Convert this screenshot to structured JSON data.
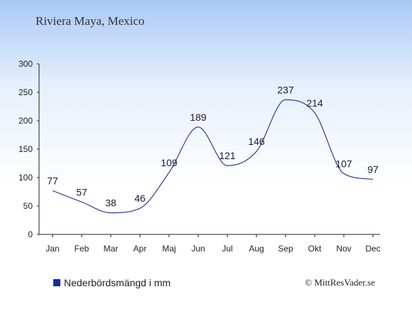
{
  "colors": {
    "line": "#1f2c8f",
    "swatch": "#1a2aa8",
    "axis": "#222222"
  },
  "chart_data": {
    "type": "line",
    "title": "Riviera Maya, Mexico",
    "xlabel": "",
    "ylabel": "",
    "categories": [
      "Jan",
      "Feb",
      "Mar",
      "Apr",
      "Maj",
      "Jun",
      "Jul",
      "Aug",
      "Sep",
      "Okt",
      "Nov",
      "Dec"
    ],
    "series": [
      {
        "name": "Nederbördsmängd i mm",
        "values": [
          77,
          57,
          38,
          46,
          109,
          189,
          121,
          146,
          237,
          214,
          107,
          97
        ]
      }
    ],
    "ylim": [
      0,
      300
    ],
    "yticks": [
      0,
      50,
      100,
      150,
      200,
      250,
      300
    ],
    "data_labels": [
      "77",
      "57",
      "38",
      "46",
      "109",
      "189",
      "121",
      "146",
      "237",
      "214",
      "107",
      "97"
    ],
    "grid": false,
    "legend": "bottom-left"
  },
  "footer": {
    "copyright": "© MittResVader.se"
  }
}
